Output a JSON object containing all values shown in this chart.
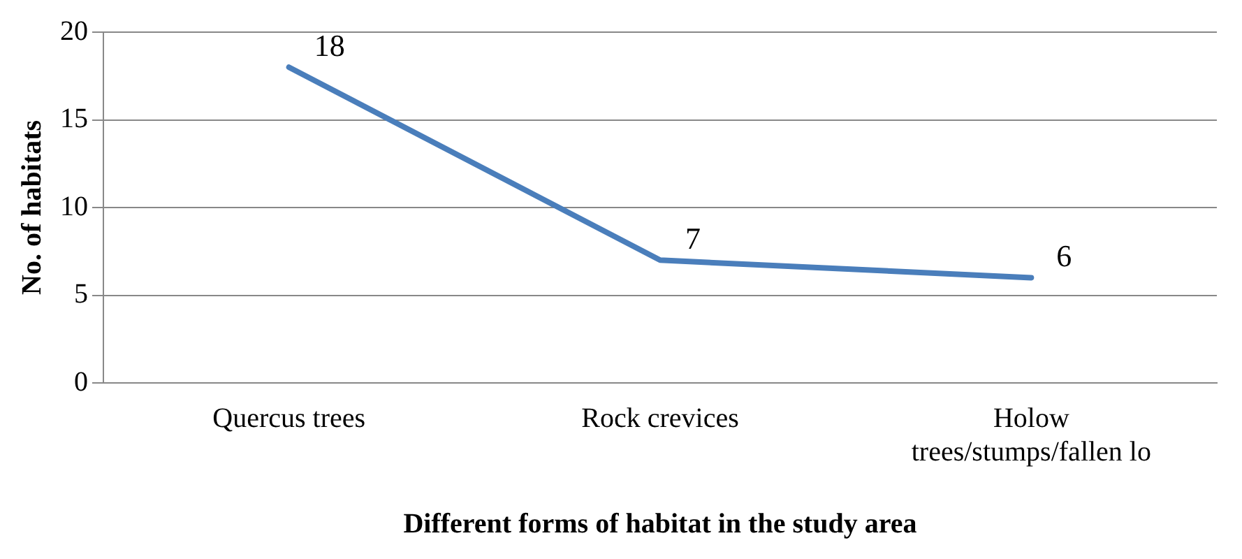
{
  "chart_data": {
    "type": "line",
    "xlabel": "Different forms of habitat in the study area",
    "ylabel": "No. of habitats",
    "categories": [
      "Quercus trees",
      "Rock crevices",
      "Holow trees/stumps/fallen lo"
    ],
    "series": [
      {
        "color": "#4a7ebb",
        "values": [
          18,
          7,
          6
        ]
      }
    ],
    "ylim": [
      0,
      20
    ],
    "yticks": [
      0,
      5,
      10,
      15,
      20
    ],
    "grid": "y",
    "legend": false,
    "marker": "none",
    "line_style": "solid",
    "data_labels": true
  }
}
